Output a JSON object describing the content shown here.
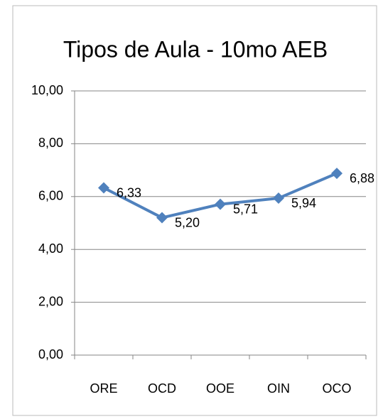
{
  "chart_data": {
    "type": "line",
    "title": "Tipos de Aula - 10mo AEB",
    "categories": [
      "ORE",
      "OCD",
      "OOE",
      "OIN",
      "OCO"
    ],
    "series": [
      {
        "name": "Tipos de Aula - 10mo AEB",
        "color": "#4f81bd",
        "values": [
          6.33,
          5.2,
          5.71,
          5.94,
          6.88
        ],
        "value_labels": [
          "6,33",
          "5,20",
          "5,71",
          "5,94",
          "6,88"
        ]
      }
    ],
    "ylim": [
      0,
      10
    ],
    "yticks": [
      {
        "value": 0,
        "label": "0,00"
      },
      {
        "value": 2,
        "label": "2,00"
      },
      {
        "value": 4,
        "label": "4,00"
      },
      {
        "value": 6,
        "label": "6,00"
      },
      {
        "value": 8,
        "label": "8,00"
      },
      {
        "value": 10,
        "label": "10,00"
      }
    ],
    "grid": true
  }
}
